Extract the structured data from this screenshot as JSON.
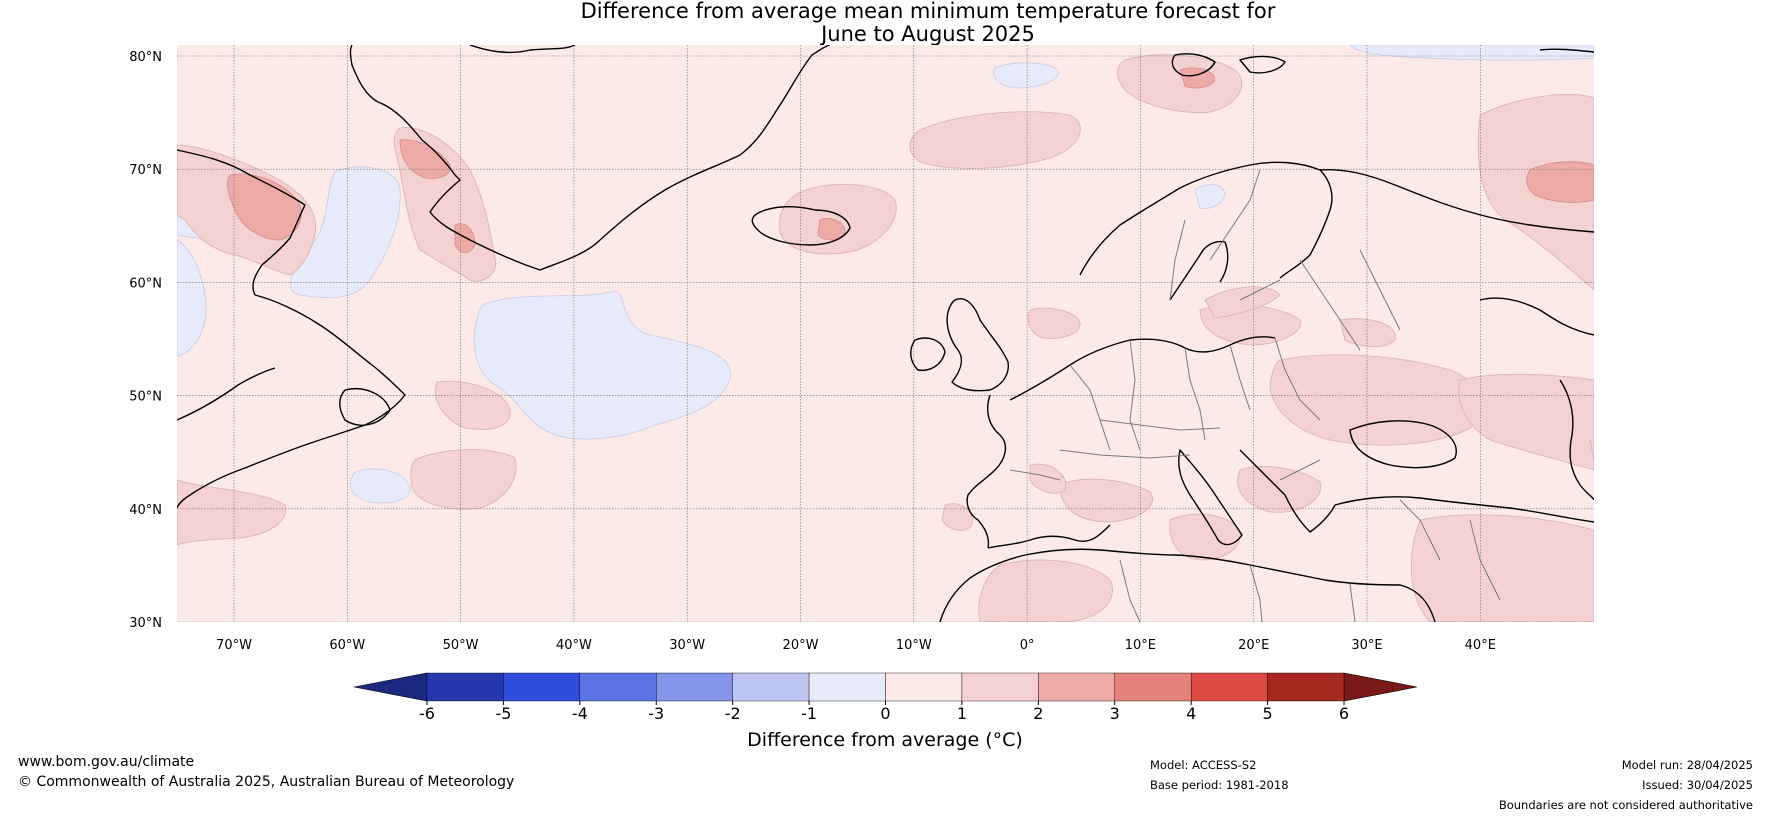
{
  "title_line1": "Difference from average mean minimum temperature forecast for",
  "title_line2": "June to August 2025",
  "lat_labels": [
    "80°N",
    "70°N",
    "60°N",
    "50°N",
    "40°N",
    "30°N"
  ],
  "lon_labels": [
    "70°W",
    "60°W",
    "50°W",
    "40°W",
    "30°W",
    "20°W",
    "10°W",
    "0°",
    "10°E",
    "20°E",
    "30°E",
    "40°E"
  ],
  "colorbar": {
    "label": "Difference from average (°C)",
    "ticks": [
      "-6",
      "-5",
      "-4",
      "-3",
      "-2",
      "-1",
      "0",
      "1",
      "2",
      "3",
      "4",
      "5",
      "6"
    ],
    "under_color": "#1b2a80",
    "over_color": "#7a1a18",
    "colors": [
      "#2538b0",
      "#2f4ddc",
      "#5c73e6",
      "#8596ea",
      "#bfc6f3",
      "#e8ebfb",
      "#fbeae8",
      "#f3d2d1",
      "#eeaaa6",
      "#e6827c",
      "#dc4a41",
      "#a82822"
    ]
  },
  "footer": {
    "website": "www.bom.gov.au/climate",
    "copyright": "© Commonwealth of Australia 2025, Australian Bureau of Meteorology",
    "model": "Model: ACCESS-S2",
    "base_period": "Base period: 1981-2018",
    "model_run": "Model run: 28/04/2025",
    "issued": "Issued: 30/04/2025",
    "disclaimer": "Boundaries are not considered authoritative"
  }
}
